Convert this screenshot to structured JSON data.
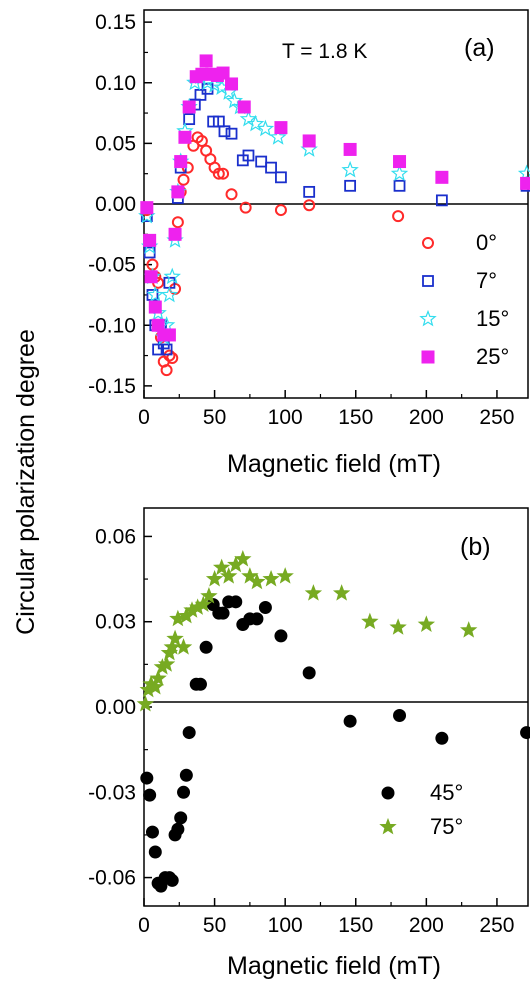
{
  "ylabel_shared": "Circular polarization degree",
  "colors": {
    "red": "#ff2a2a",
    "blue": "#1a2fcc",
    "cyan": "#33ddee",
    "magenta": "#ee22ee",
    "black": "#000000",
    "green": "#77aa22"
  },
  "chart_data": [
    {
      "type": "scatter",
      "panel_label": "(a)",
      "annotation": "T = 1.8 K",
      "xlabel": "Magnetic field (mT)",
      "ylabel": "Circular polarization degree",
      "xlim": [
        0,
        272
      ],
      "ylim": [
        -0.16,
        0.16
      ],
      "xticks": [
        0,
        50,
        100,
        150,
        200,
        250
      ],
      "yticks": [
        -0.15,
        -0.1,
        -0.05,
        0.0,
        0.05,
        0.1,
        0.15
      ],
      "ytick_labels": [
        "-0.15",
        "-0.10",
        "-0.05",
        "0.00",
        "0.05",
        "0.10",
        "0.15"
      ],
      "zero_line": true,
      "legend_position": "right-middle",
      "series": [
        {
          "name": "0°",
          "marker": "open-circle",
          "color": "#ff2a2a",
          "points": [
            [
              2,
              -0.005
            ],
            [
              4,
              -0.03
            ],
            [
              6,
              -0.05
            ],
            [
              8,
              -0.06
            ],
            [
              10,
              -0.065
            ],
            [
              12,
              -0.11
            ],
            [
              14,
              -0.13
            ],
            [
              16,
              -0.137
            ],
            [
              18,
              -0.125
            ],
            [
              20,
              -0.127
            ],
            [
              22,
              -0.07
            ],
            [
              24,
              -0.015
            ],
            [
              26,
              0.01
            ],
            [
              28,
              0.02
            ],
            [
              31,
              0.03
            ],
            [
              35,
              0.048
            ],
            [
              38,
              0.055
            ],
            [
              41,
              0.052
            ],
            [
              44,
              0.044
            ],
            [
              47,
              0.037
            ],
            [
              50,
              0.03
            ],
            [
              53,
              0.025
            ],
            [
              56,
              0.025
            ],
            [
              62,
              0.008
            ],
            [
              72,
              -0.003
            ],
            [
              97,
              -0.005
            ],
            [
              117,
              -0.001
            ],
            [
              180,
              -0.01
            ]
          ]
        },
        {
          "name": "7°",
          "marker": "open-square",
          "color": "#1a2fcc",
          "points": [
            [
              2,
              -0.01
            ],
            [
              4,
              -0.04
            ],
            [
              6,
              -0.075
            ],
            [
              8,
              -0.1
            ],
            [
              10,
              -0.12
            ],
            [
              12,
              -0.1
            ],
            [
              14,
              -0.115
            ],
            [
              16,
              -0.12
            ],
            [
              18,
              -0.065
            ],
            [
              22,
              -0.025
            ],
            [
              24,
              0.005
            ],
            [
              26,
              0.03
            ],
            [
              29,
              0.055
            ],
            [
              32,
              0.07
            ],
            [
              36,
              0.082
            ],
            [
              40,
              0.09
            ],
            [
              45,
              0.095
            ],
            [
              49,
              0.068
            ],
            [
              53,
              0.068
            ],
            [
              57,
              0.06
            ],
            [
              62,
              0.058
            ],
            [
              70,
              0.036
            ],
            [
              74,
              0.04
            ],
            [
              83,
              0.035
            ],
            [
              90,
              0.03
            ],
            [
              97,
              0.022
            ],
            [
              117,
              0.01
            ],
            [
              146,
              0.015
            ],
            [
              181,
              0.015
            ],
            [
              211,
              0.003
            ],
            [
              271,
              0.015
            ]
          ]
        },
        {
          "name": "15°",
          "marker": "open-star",
          "color": "#33ddee",
          "points": [
            [
              2,
              -0.01
            ],
            [
              4,
              -0.035
            ],
            [
              6,
              -0.06
            ],
            [
              8,
              -0.075
            ],
            [
              10,
              -0.09
            ],
            [
              12,
              -0.1
            ],
            [
              14,
              -0.11
            ],
            [
              16,
              -0.1
            ],
            [
              18,
              -0.075
            ],
            [
              20,
              -0.06
            ],
            [
              22,
              -0.03
            ],
            [
              24,
              0.01
            ],
            [
              26,
              0.035
            ],
            [
              29,
              0.06
            ],
            [
              32,
              0.08
            ],
            [
              36,
              0.1
            ],
            [
              40,
              0.105
            ],
            [
              45,
              0.1
            ],
            [
              50,
              0.098
            ],
            [
              55,
              0.096
            ],
            [
              60,
              0.092
            ],
            [
              64,
              0.085
            ],
            [
              68,
              0.08
            ],
            [
              74,
              0.07
            ],
            [
              79,
              0.066
            ],
            [
              86,
              0.062
            ],
            [
              95,
              0.055
            ],
            [
              117,
              0.045
            ],
            [
              146,
              0.028
            ],
            [
              181,
              0.025
            ],
            [
              271,
              0.025
            ]
          ]
        },
        {
          "name": "25°",
          "marker": "filled-square",
          "color": "#ee22ee",
          "points": [
            [
              2,
              -0.003
            ],
            [
              4,
              -0.03
            ],
            [
              5,
              -0.06
            ],
            [
              8,
              -0.085
            ],
            [
              10,
              -0.1
            ],
            [
              14,
              -0.108
            ],
            [
              18,
              -0.108
            ],
            [
              22,
              -0.025
            ],
            [
              24,
              0.01
            ],
            [
              26,
              0.035
            ],
            [
              29,
              0.055
            ],
            [
              32,
              0.08
            ],
            [
              37,
              0.105
            ],
            [
              41,
              0.107
            ],
            [
              44,
              0.118
            ],
            [
              48,
              0.107
            ],
            [
              52,
              0.106
            ],
            [
              56,
              0.108
            ],
            [
              62,
              0.099
            ],
            [
              71,
              0.08
            ],
            [
              97,
              0.063
            ],
            [
              117,
              0.052
            ],
            [
              146,
              0.045
            ],
            [
              181,
              0.035
            ],
            [
              211,
              0.022
            ],
            [
              271,
              0.017
            ]
          ]
        }
      ]
    },
    {
      "type": "scatter",
      "panel_label": "(b)",
      "xlabel": "Magnetic field (mT)",
      "ylabel": "Circular polarization degree",
      "xlim": [
        0,
        272
      ],
      "ylim": [
        -0.07,
        0.07
      ],
      "xticks": [
        0,
        50,
        100,
        150,
        200,
        250
      ],
      "yticks": [
        -0.06,
        -0.03,
        0.0,
        0.03,
        0.06
      ],
      "ytick_labels": [
        "-0.06",
        "-0.03",
        "0.00",
        "0.03",
        "0.06"
      ],
      "zero_line": true,
      "legend_position": "bottom-right",
      "series": [
        {
          "name": "45°",
          "marker": "filled-circle",
          "color": "#000000",
          "points": [
            [
              2,
              -0.025
            ],
            [
              4,
              -0.031
            ],
            [
              6,
              -0.044
            ],
            [
              8,
              -0.051
            ],
            [
              10,
              -0.062
            ],
            [
              12,
              -0.063
            ],
            [
              15,
              -0.06
            ],
            [
              18,
              -0.06
            ],
            [
              20,
              -0.061
            ],
            [
              22,
              -0.045
            ],
            [
              24,
              -0.043
            ],
            [
              26,
              -0.039
            ],
            [
              28,
              -0.03
            ],
            [
              30,
              -0.024
            ],
            [
              32,
              -0.009
            ],
            [
              37,
              0.008
            ],
            [
              40,
              0.008
            ],
            [
              44,
              0.021
            ],
            [
              49,
              0.036
            ],
            [
              53,
              0.033
            ],
            [
              56,
              0.033
            ],
            [
              60,
              0.037
            ],
            [
              65,
              0.037
            ],
            [
              70,
              0.029
            ],
            [
              75,
              0.031
            ],
            [
              80,
              0.031
            ],
            [
              86,
              0.035
            ],
            [
              97,
              0.025
            ],
            [
              117,
              0.012
            ],
            [
              146,
              -0.005
            ],
            [
              181,
              -0.003
            ],
            [
              211,
              -0.011
            ],
            [
              271,
              -0.009
            ]
          ]
        },
        {
          "name": "75°",
          "marker": "filled-star",
          "color": "#77aa22",
          "points": [
            [
              1,
              0.001
            ],
            [
              3,
              0.006
            ],
            [
              5,
              0.008
            ],
            [
              8,
              0.007
            ],
            [
              10,
              0.01
            ],
            [
              13,
              0.014
            ],
            [
              16,
              0.015
            ],
            [
              18,
              0.019
            ],
            [
              20,
              0.021
            ],
            [
              22,
              0.024
            ],
            [
              24,
              0.031
            ],
            [
              28,
              0.021
            ],
            [
              30,
              0.032
            ],
            [
              34,
              0.034
            ],
            [
              38,
              0.035
            ],
            [
              42,
              0.036
            ],
            [
              46,
              0.039
            ],
            [
              50,
              0.045
            ],
            [
              55,
              0.049
            ],
            [
              60,
              0.046
            ],
            [
              65,
              0.05
            ],
            [
              70,
              0.052
            ],
            [
              75,
              0.046
            ],
            [
              80,
              0.044
            ],
            [
              90,
              0.045
            ],
            [
              100,
              0.046
            ],
            [
              120,
              0.04
            ],
            [
              140,
              0.04
            ],
            [
              160,
              0.03
            ],
            [
              180,
              0.028
            ],
            [
              200,
              0.029
            ],
            [
              230,
              0.027
            ]
          ]
        }
      ]
    }
  ]
}
